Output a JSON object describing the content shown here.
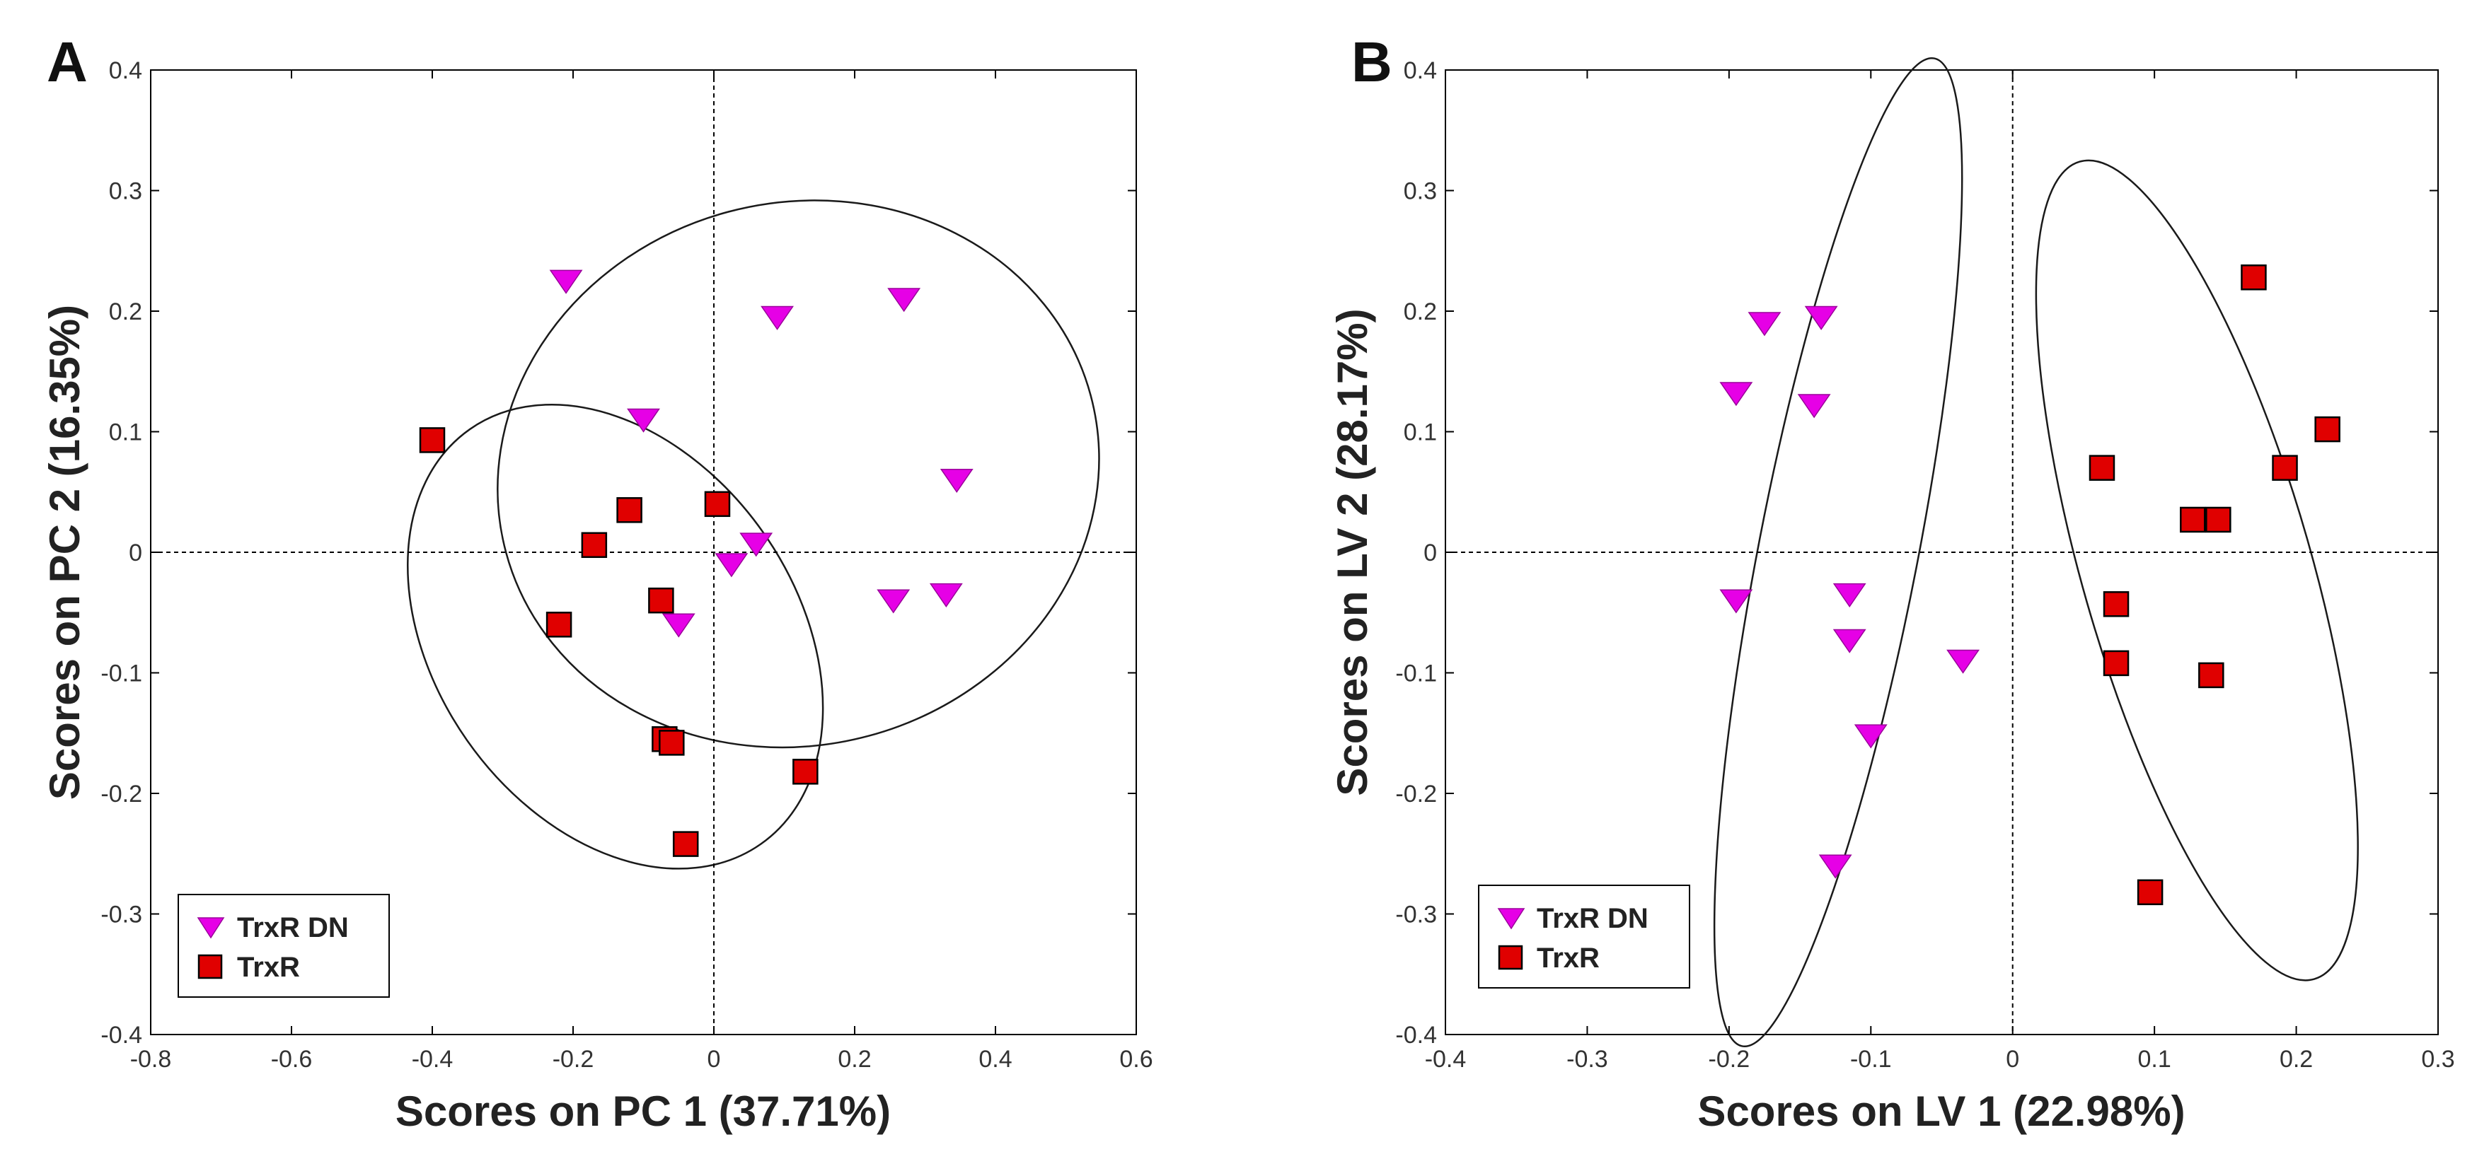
{
  "chart_data": [
    {
      "type": "scatter",
      "panel": "A",
      "xlabel": "Scores on PC 1 (37.71%)",
      "ylabel": "Scores on PC 2 (16.35%)",
      "xlim": [
        -0.8,
        0.6
      ],
      "ylim": [
        -0.4,
        0.4
      ],
      "xticks": [
        "-0.8",
        "-0.6",
        "-0.4",
        "-0.2",
        "0",
        "0.2",
        "0.4",
        "0.6"
      ],
      "yticks": [
        "-0.4",
        "-0.3",
        "-0.2",
        "-0.1",
        "0",
        "0.1",
        "0.2",
        "0.3",
        "0.4"
      ],
      "grid": false,
      "reference_lines": {
        "x": 0,
        "y": 0
      },
      "legend_position": "bottom-left",
      "series": [
        {
          "name": "TrxR DN",
          "marker": "triangle-down",
          "color": "#e600e6",
          "x": [
            -0.21,
            0.09,
            0.27,
            -0.1,
            0.345,
            0.06,
            0.025,
            -0.05,
            0.255,
            0.33
          ],
          "y": [
            0.225,
            0.195,
            0.21,
            0.11,
            0.06,
            0.007,
            -0.01,
            -0.06,
            -0.04,
            -0.035
          ]
        },
        {
          "name": "TrxR",
          "marker": "square",
          "color": "#e00000",
          "x": [
            -0.4,
            -0.12,
            -0.17,
            0.005,
            -0.22,
            -0.075,
            -0.07,
            -0.06,
            0.13,
            -0.04
          ],
          "y": [
            0.093,
            0.035,
            0.006,
            0.04,
            -0.06,
            -0.04,
            -0.155,
            -0.158,
            -0.182,
            -0.242
          ]
        }
      ],
      "ellipses": [
        {
          "group": "TrxR DN",
          "cx": 0.12,
          "cy": 0.065,
          "rx": 0.43,
          "ry": 0.225,
          "rotation_deg": 15
        },
        {
          "group": "TrxR",
          "cx": -0.14,
          "cy": -0.07,
          "rx": 0.36,
          "ry": 0.15,
          "rotation_deg": -55
        }
      ]
    },
    {
      "type": "scatter",
      "panel": "B",
      "xlabel": "Scores on LV 1 (22.98%)",
      "ylabel": "Scores on LV 2 (28.17%)",
      "xlim": [
        -0.4,
        0.3
      ],
      "ylim": [
        -0.4,
        0.4
      ],
      "xticks": [
        "-0.4",
        "-0.3",
        "-0.2",
        "-0.1",
        "0",
        "0.1",
        "0.2",
        "0.3"
      ],
      "yticks": [
        "-0.4",
        "-0.3",
        "-0.2",
        "-0.1",
        "0",
        "0.1",
        "0.2",
        "0.3",
        "0.4"
      ],
      "grid": false,
      "reference_lines": {
        "x": 0,
        "y": 0
      },
      "legend_position": "bottom-left",
      "series": [
        {
          "name": "TrxR DN",
          "marker": "triangle-down",
          "color": "#e600e6",
          "x": [
            -0.175,
            -0.135,
            -0.195,
            -0.14,
            -0.195,
            -0.115,
            -0.115,
            -0.035,
            -0.1,
            -0.125
          ],
          "y": [
            0.19,
            0.195,
            0.132,
            0.122,
            -0.04,
            -0.035,
            -0.073,
            -0.09,
            -0.152,
            -0.26
          ]
        },
        {
          "name": "TrxR",
          "marker": "square",
          "color": "#e00000",
          "x": [
            0.17,
            0.222,
            0.063,
            0.192,
            0.127,
            0.145,
            0.073,
            0.073,
            0.14,
            0.097
          ],
          "y": [
            0.228,
            0.102,
            0.07,
            0.07,
            0.027,
            0.027,
            -0.043,
            -0.092,
            -0.102,
            -0.282
          ]
        }
      ],
      "ellipses": [
        {
          "group": "TrxR DN",
          "cx": -0.123,
          "cy": 0,
          "rx": 0.355,
          "ry": 0.066,
          "rotation_deg": 79
        },
        {
          "group": "TrxR",
          "cx": 0.13,
          "cy": -0.015,
          "rx": 0.3,
          "ry": 0.095,
          "rotation_deg": -74
        }
      ]
    }
  ]
}
